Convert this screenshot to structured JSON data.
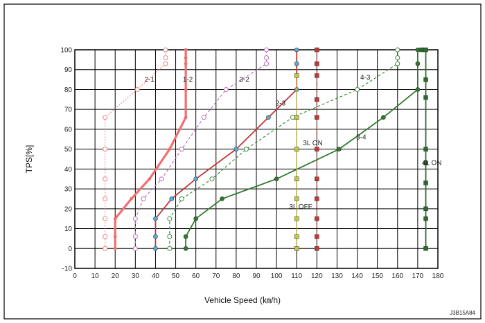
{
  "chart_data": {
    "type": "line",
    "xlabel": "Vehicle Speed (㎞/h)",
    "ylabel": "TPS[%]",
    "xlim": [
      0,
      180
    ],
    "ylim": [
      -10,
      100
    ],
    "x_ticks": [
      0,
      10,
      20,
      30,
      40,
      50,
      60,
      70,
      80,
      90,
      100,
      110,
      120,
      130,
      140,
      150,
      160,
      170,
      180
    ],
    "y_ticks": [
      -10,
      0,
      10,
      20,
      30,
      40,
      50,
      60,
      70,
      80,
      90,
      100
    ],
    "grid": true,
    "reference": "J3B15A84",
    "series": [
      {
        "name": "2-1",
        "color": "#f08080",
        "style": "dotted",
        "marker": "circle",
        "points": [
          [
            15,
            0
          ],
          [
            15,
            6
          ],
          [
            15,
            15
          ],
          [
            15,
            25
          ],
          [
            15,
            35
          ],
          [
            15,
            50
          ],
          [
            15,
            66
          ],
          [
            31,
            80
          ],
          [
            45,
            93
          ],
          [
            45,
            96
          ],
          [
            45,
            100
          ]
        ]
      },
      {
        "name": "1-2",
        "color": "#ef6f6f",
        "style": "solid-thick",
        "marker": "dot",
        "points": [
          [
            20,
            0
          ],
          [
            20,
            6
          ],
          [
            20,
            15
          ],
          [
            28,
            25
          ],
          [
            37,
            35
          ],
          [
            47,
            50
          ],
          [
            55,
            66
          ],
          [
            55,
            80
          ],
          [
            55,
            93
          ],
          [
            55,
            96
          ],
          [
            55,
            100
          ]
        ]
      },
      {
        "name": "3-2",
        "color": "#c070b8",
        "style": "dashed",
        "marker": "circle",
        "points": [
          [
            30,
            0
          ],
          [
            30,
            6
          ],
          [
            30,
            15
          ],
          [
            34,
            25
          ],
          [
            43,
            35
          ],
          [
            53,
            50
          ],
          [
            64,
            66
          ],
          [
            75,
            80
          ],
          [
            95,
            93
          ],
          [
            95,
            96
          ],
          [
            95,
            100
          ]
        ]
      },
      {
        "name": "2-3",
        "color": "#c03838",
        "style": "solid",
        "marker": "filled-circle",
        "points": [
          [
            40,
            0
          ],
          [
            40,
            6
          ],
          [
            40,
            15
          ],
          [
            48,
            25
          ],
          [
            60,
            35
          ],
          [
            80,
            50
          ],
          [
            96,
            66
          ],
          [
            110,
            80
          ],
          [
            110,
            87
          ],
          [
            110,
            93
          ],
          [
            110,
            100
          ]
        ]
      },
      {
        "name": "4-3",
        "color": "#3f8a3f",
        "style": "dashed",
        "marker": "circle",
        "points": [
          [
            47,
            0
          ],
          [
            47,
            6
          ],
          [
            47,
            15
          ],
          [
            53,
            25
          ],
          [
            68,
            35
          ],
          [
            85,
            50
          ],
          [
            108,
            66
          ],
          [
            140,
            80
          ],
          [
            160,
            93
          ],
          [
            160,
            96
          ],
          [
            160,
            100
          ]
        ]
      },
      {
        "name": "3-4",
        "color": "#2e7a2e",
        "style": "solid",
        "marker": "filled-circle",
        "points": [
          [
            55,
            0
          ],
          [
            55,
            6
          ],
          [
            60,
            15
          ],
          [
            73,
            25
          ],
          [
            100,
            35
          ],
          [
            131,
            50
          ],
          [
            153,
            66
          ],
          [
            170,
            80
          ],
          [
            170,
            93
          ],
          [
            170,
            100
          ]
        ]
      },
      {
        "name": "3L ON",
        "color": "#c03838",
        "style": "dash-dot",
        "marker": "square",
        "points": [
          [
            120,
            0
          ],
          [
            120,
            6
          ],
          [
            120,
            15
          ],
          [
            120,
            25
          ],
          [
            120,
            35
          ],
          [
            120,
            50
          ],
          [
            120,
            66
          ],
          [
            120,
            75
          ],
          [
            120,
            87
          ],
          [
            120,
            93
          ],
          [
            120,
            100
          ]
        ]
      },
      {
        "name": "3L OFF",
        "color": "#c6c640",
        "style": "solid-thin",
        "marker": "square",
        "points": [
          [
            110,
            0
          ],
          [
            110,
            6
          ],
          [
            110,
            15
          ],
          [
            110,
            25
          ],
          [
            110,
            35
          ],
          [
            110,
            50
          ],
          [
            110,
            66
          ],
          [
            110,
            87
          ]
        ]
      },
      {
        "name": "4L ON",
        "color": "#2e6a2e",
        "style": "solid",
        "marker": "square",
        "points": [
          [
            174,
            0
          ],
          [
            174,
            15
          ],
          [
            174,
            20
          ],
          [
            174,
            33
          ],
          [
            174,
            43
          ],
          [
            174,
            50
          ],
          [
            174,
            76
          ],
          [
            174,
            85
          ],
          [
            174,
            100
          ],
          [
            172,
            100
          ]
        ]
      }
    ],
    "labels": [
      {
        "text": "2-1",
        "x": 37,
        "y": 84
      },
      {
        "text": "1-2",
        "x": 56,
        "y": 84
      },
      {
        "text": "3-2",
        "x": 84,
        "y": 84
      },
      {
        "text": "2-3",
        "x": 102,
        "y": 72
      },
      {
        "text": "4-3",
        "x": 144,
        "y": 85
      },
      {
        "text": "3-4",
        "x": 142,
        "y": 55
      },
      {
        "text": "3L ON",
        "x": 118,
        "y": 52
      },
      {
        "text": "3L OFF",
        "x": 112,
        "y": 20
      },
      {
        "text": "4L ON",
        "x": 177,
        "y": 42
      }
    ]
  }
}
